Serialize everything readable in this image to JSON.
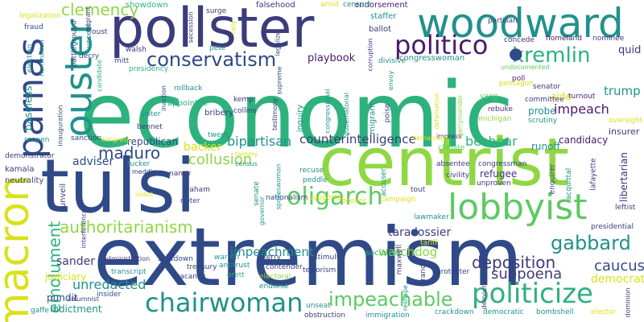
{
  "palette": {
    "navy": "#2f4a87",
    "indigo": "#3b3c7c",
    "teal": "#21918c",
    "seafoam": "#2db27d",
    "green": "#5ec962",
    "lime": "#8fd744",
    "yellow": "#d8e219",
    "purple": "#46337e",
    "violet": "#481a6c"
  },
  "words": [
    {
      "text": "economic",
      "color": "seafoam"
    },
    {
      "text": "extremism",
      "color": "navy"
    },
    {
      "text": "tulsi",
      "color": "navy"
    },
    {
      "text": "centrist",
      "color": "lime"
    },
    {
      "text": "pollster",
      "color": "indigo"
    },
    {
      "text": "woodward",
      "color": "teal"
    },
    {
      "text": "macron",
      "color": "yellow"
    },
    {
      "text": "parnas",
      "color": "navy"
    },
    {
      "text": "ouster",
      "color": "teal"
    },
    {
      "text": "lobbyist",
      "color": "green"
    },
    {
      "text": "oligarch",
      "color": "green"
    },
    {
      "text": "chairwoman",
      "color": "teal"
    },
    {
      "text": "politicize",
      "color": "seafoam"
    },
    {
      "text": "impeachable",
      "color": "green"
    },
    {
      "text": "politico",
      "color": "violet"
    },
    {
      "text": "kremlin",
      "color": "seafoam"
    },
    {
      "text": "conservatism",
      "color": "navy"
    },
    {
      "text": "gabbard",
      "color": "teal"
    },
    {
      "text": "authoritarianism",
      "color": "lime"
    },
    {
      "text": "emolument",
      "color": "seafoam"
    },
    {
      "text": "deposition",
      "color": "indigo"
    },
    {
      "text": "clemency",
      "color": "lime"
    },
    {
      "text": "maduro",
      "color": "navy"
    },
    {
      "text": "collusion",
      "color": "lime"
    },
    {
      "text": "bipartisan",
      "color": "teal"
    },
    {
      "text": "counterintelligence",
      "color": "indigo"
    },
    {
      "text": "beshear",
      "color": "seafoam"
    },
    {
      "text": "impeachment",
      "color": "teal"
    },
    {
      "text": "watchdog",
      "color": "lime"
    },
    {
      "text": "subpoena",
      "color": "indigo"
    },
    {
      "text": "caucus",
      "color": "navy"
    },
    {
      "text": "unredacted",
      "color": "teal"
    },
    {
      "text": "impeach",
      "color": "violet"
    },
    {
      "text": "trump",
      "color": "teal"
    },
    {
      "text": "sander",
      "color": "indigo"
    },
    {
      "text": "dossier",
      "color": "indigo"
    },
    {
      "text": "backer",
      "color": "yellow"
    },
    {
      "text": "adviser",
      "color": "navy"
    },
    {
      "text": "democrat",
      "color": "yellow"
    },
    {
      "text": "tara",
      "color": "indigo"
    },
    {
      "text": "quid",
      "color": "indigo"
    },
    {
      "text": "playbook",
      "color": "violet"
    },
    {
      "text": "republican",
      "color": "navy"
    },
    {
      "text": "candidacy",
      "color": "violet"
    },
    {
      "text": "refugee",
      "color": "purple"
    },
    {
      "text": "aide",
      "color": "yellow"
    },
    {
      "text": "runoff",
      "color": "teal"
    },
    {
      "text": "probe",
      "color": "teal"
    },
    {
      "text": "pundit",
      "color": "navy"
    },
    {
      "text": "indictment",
      "color": "teal"
    },
    {
      "text": "libertarian",
      "color": "purple"
    },
    {
      "text": "insurer",
      "color": "purple"
    },
    {
      "text": "baseless",
      "color": "teal"
    },
    {
      "text": "judiciary",
      "color": "yellow"
    },
    {
      "text": "showdown",
      "color": "seafoam"
    },
    {
      "text": "falsehood",
      "color": "purple"
    },
    {
      "text": "endorsement",
      "color": "violet"
    },
    {
      "text": "staffer",
      "color": "teal"
    },
    {
      "text": "ballot",
      "color": "indigo"
    },
    {
      "text": "congresswoman",
      "color": "teal"
    },
    {
      "text": "homeland",
      "color": "violet"
    },
    {
      "text": "nominee",
      "color": "purple"
    },
    {
      "text": "partisan",
      "color": "indigo"
    },
    {
      "text": "concede",
      "color": "purple"
    },
    {
      "text": "poll",
      "color": "violet"
    },
    {
      "text": "divisive",
      "color": "teal"
    },
    {
      "text": "mitt",
      "color": "navy"
    },
    {
      "text": "decry",
      "color": "navy"
    },
    {
      "text": "walsh",
      "color": "purple"
    },
    {
      "text": "oust",
      "color": "purple"
    },
    {
      "text": "surge",
      "color": "indigo"
    },
    {
      "text": "pete",
      "color": "teal"
    },
    {
      "text": "amid",
      "color": "yellow"
    },
    {
      "text": "censure",
      "color": "teal"
    },
    {
      "text": "rollback",
      "color": "teal"
    },
    {
      "text": "appointee",
      "color": "seafoam"
    },
    {
      "text": "bribery",
      "color": "indigo"
    },
    {
      "text": "kemp",
      "color": "purple"
    },
    {
      "text": "collins",
      "color": "indigo"
    },
    {
      "text": "voter",
      "color": "teal"
    },
    {
      "text": "bennet",
      "color": "purple"
    },
    {
      "text": "sanction",
      "color": "navy"
    },
    {
      "text": "tucker",
      "color": "teal"
    },
    {
      "text": "nancy",
      "color": "purple"
    },
    {
      "text": "graham",
      "color": "indigo"
    },
    {
      "text": "rioter",
      "color": "navy"
    },
    {
      "text": "tweet",
      "color": "teal"
    },
    {
      "text": "inquiry",
      "color": "teal"
    },
    {
      "text": "migrant",
      "color": "teal"
    },
    {
      "text": "poise",
      "color": "indigo"
    },
    {
      "text": "yang",
      "color": "green"
    },
    {
      "text": "committee",
      "color": "indigo"
    },
    {
      "text": "rebuke",
      "color": "purple"
    },
    {
      "text": "michigan",
      "color": "lime"
    },
    {
      "text": "scrutiny",
      "color": "teal"
    },
    {
      "text": "oversight",
      "color": "yellow"
    },
    {
      "text": "senator",
      "color": "purple"
    },
    {
      "text": "turnout",
      "color": "violet"
    },
    {
      "text": "pentagon",
      "color": "yellow"
    },
    {
      "text": "kamala",
      "color": "indigo"
    },
    {
      "text": "neutrality",
      "color": "indigo"
    },
    {
      "text": "demonstrator",
      "color": "indigo"
    },
    {
      "text": "reopen",
      "color": "teal"
    },
    {
      "text": "unveil",
      "color": "indigo"
    },
    {
      "text": "absentee",
      "color": "indigo"
    },
    {
      "text": "congressman",
      "color": "indigo"
    },
    {
      "text": "civility",
      "color": "purple"
    },
    {
      "text": "unproven",
      "color": "indigo"
    },
    {
      "text": "climate",
      "color": "green"
    },
    {
      "text": "accuser",
      "color": "teal"
    },
    {
      "text": "recuse",
      "color": "teal"
    },
    {
      "text": "peddle",
      "color": "teal"
    },
    {
      "text": "booker",
      "color": "yellow"
    },
    {
      "text": "tout",
      "color": "indigo"
    },
    {
      "text": "lawmaker",
      "color": "teal"
    },
    {
      "text": "nationalism",
      "color": "navy"
    },
    {
      "text": "supporter",
      "color": "yellow"
    },
    {
      "text": "campaign",
      "color": "yellow"
    },
    {
      "text": "socialism",
      "color": "seafoam"
    },
    {
      "text": "stimulus",
      "color": "navy"
    },
    {
      "text": "shutdown",
      "color": "navy"
    },
    {
      "text": "administration",
      "color": "indigo"
    },
    {
      "text": "treasury",
      "color": "indigo"
    },
    {
      "text": "antitrust",
      "color": "teal"
    },
    {
      "text": "warren",
      "color": "teal"
    },
    {
      "text": "kerry",
      "color": "indigo"
    },
    {
      "text": "contender",
      "color": "indigo"
    },
    {
      "text": "brett",
      "color": "seafoam"
    },
    {
      "text": "electoral",
      "color": "lime"
    },
    {
      "text": "terrorism",
      "color": "indigo"
    },
    {
      "text": "endorse",
      "color": "teal"
    },
    {
      "text": "maxwell",
      "color": "indigo"
    },
    {
      "text": "protester",
      "color": "indigo"
    },
    {
      "text": "rand",
      "color": "indigo"
    },
    {
      "text": "tariff",
      "color": "yellow"
    },
    {
      "text": "vacancy",
      "color": "indigo"
    },
    {
      "text": "transcript",
      "color": "teal"
    },
    {
      "text": "insider",
      "color": "navy"
    },
    {
      "text": "columnist",
      "color": "indigo"
    },
    {
      "text": "unseat",
      "color": "teal"
    },
    {
      "text": "obstruction",
      "color": "indigo"
    },
    {
      "text": "immigration",
      "color": "teal"
    },
    {
      "text": "democratic",
      "color": "teal"
    },
    {
      "text": "bombshell",
      "color": "teal"
    },
    {
      "text": "elector",
      "color": "yellow"
    },
    {
      "text": "crackdown",
      "color": "teal"
    },
    {
      "text": "gaffe",
      "color": "teal"
    },
    {
      "text": "leftist",
      "color": "purple"
    },
    {
      "text": "presidential",
      "color": "indigo"
    },
    {
      "text": "enquirer",
      "color": "indigo"
    },
    {
      "text": "acquittal",
      "color": "teal"
    },
    {
      "text": "lafayette",
      "color": "purple"
    },
    {
      "text": "dominion",
      "color": "indigo"
    },
    {
      "text": "legalization",
      "color": "yellow"
    },
    {
      "text": "fraud",
      "color": "navy"
    },
    {
      "text": "election",
      "color": "teal"
    },
    {
      "text": "nomination",
      "color": "teal"
    },
    {
      "text": "battleground",
      "color": "navy"
    },
    {
      "text": "unseat",
      "color": "teal"
    },
    {
      "text": "inauguration",
      "color": "navy"
    },
    {
      "text": "presidency",
      "color": "seafoam"
    },
    {
      "text": "secession",
      "color": "indigo"
    },
    {
      "text": "rally",
      "color": "yellow"
    },
    {
      "text": "legalize",
      "color": "navy"
    },
    {
      "text": "corruption",
      "color": "indigo"
    },
    {
      "text": "envoy",
      "color": "teal"
    },
    {
      "text": "undocumented",
      "color": "green"
    },
    {
      "text": "gubernatorial",
      "color": "teal"
    },
    {
      "text": "congressional",
      "color": "teal"
    },
    {
      "text": "testimony",
      "color": "indigo"
    },
    {
      "text": "supreme",
      "color": "navy"
    },
    {
      "text": "inaction",
      "color": "navy"
    },
    {
      "text": "candidate",
      "color": "seafoam"
    },
    {
      "text": "interference",
      "color": "indigo"
    },
    {
      "text": "spokeswoman",
      "color": "teal"
    },
    {
      "text": "senate",
      "color": "teal"
    },
    {
      "text": "governor",
      "color": "teal"
    },
    {
      "text": "defamation",
      "color": "yellow"
    },
    {
      "text": "gerrymander",
      "color": "lime"
    },
    {
      "text": "impress",
      "color": "purple"
    },
    {
      "text": "reshape",
      "color": "teal"
    },
    {
      "text": "democracy",
      "color": "indigo"
    },
    {
      "text": "migrant",
      "color": "purple"
    },
    {
      "text": "census",
      "color": "teal"
    },
    {
      "text": "tammy",
      "color": "yellow"
    },
    {
      "text": "meddle",
      "color": "indigo"
    },
    {
      "text": "indict",
      "color": "yellow"
    },
    {
      "text": "congress",
      "color": "yellow"
    },
    {
      "text": "demarcate",
      "color": "yellow"
    }
  ]
}
